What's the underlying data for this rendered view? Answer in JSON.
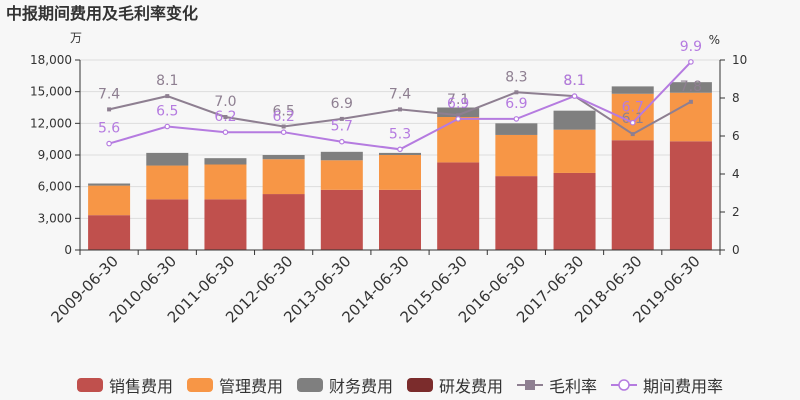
{
  "title": "中报期间费用及毛利率变化",
  "colors": {
    "sales": "#c0504d",
    "admin": "#f79646",
    "finance": "#7f7f7f",
    "rnd": "#7b2c2c",
    "gross": "#8e7f91",
    "period": "#b57be0"
  },
  "chart_data": {
    "type": "bar",
    "stacked": true,
    "categories": [
      "2009-06-30",
      "2010-06-30",
      "2011-06-30",
      "2012-06-30",
      "2013-06-30",
      "2014-06-30",
      "2015-06-30",
      "2016-06-30",
      "2017-06-30",
      "2018-06-30",
      "2019-06-30"
    ],
    "series": [
      {
        "name": "销售费用",
        "values": [
          3300,
          4800,
          4800,
          5300,
          5700,
          5700,
          8300,
          7000,
          7300,
          10400,
          10300
        ]
      },
      {
        "name": "管理费用",
        "values": [
          2800,
          3200,
          3300,
          3300,
          2800,
          3300,
          4300,
          3900,
          4100,
          4400,
          4600
        ]
      },
      {
        "name": "财务费用",
        "values": [
          200,
          1200,
          600,
          400,
          800,
          200,
          900,
          1100,
          1800,
          700,
          1000
        ]
      },
      {
        "name": "研发费用",
        "values": [
          0,
          0,
          0,
          0,
          0,
          0,
          0,
          0,
          0,
          0,
          0
        ]
      }
    ],
    "lines": [
      {
        "name": "毛利率",
        "values": [
          7.4,
          8.1,
          7.0,
          6.5,
          6.9,
          7.4,
          7.1,
          8.3,
          8.1,
          6.1,
          7.8
        ]
      },
      {
        "name": "期间费用率",
        "values": [
          5.6,
          6.5,
          6.2,
          6.2,
          5.7,
          5.3,
          6.9,
          6.9,
          8.1,
          6.7,
          9.9
        ]
      }
    ],
    "line_labels": {
      "毛利率": [
        "7.4",
        "8.1",
        "7.0",
        "6.5",
        "6.9",
        "7.4",
        "7.1",
        "8.3",
        "8.1",
        "6.1",
        "7.8"
      ],
      "期间费用率": [
        "5.6",
        "6.5",
        "6.2",
        "6.2",
        "5.7",
        "5.3",
        "6.9",
        "6.9",
        "8.1",
        "6.7",
        "9.9"
      ]
    },
    "y_left": {
      "label": "万",
      "ylim": [
        0,
        18000
      ],
      "ticks": [
        "0",
        "3,000",
        "6,000",
        "9,000",
        "12,000",
        "15,000",
        "18,000"
      ],
      "tick_values": [
        0,
        3000,
        6000,
        9000,
        12000,
        15000,
        18000
      ]
    },
    "y_right": {
      "label": "%",
      "ylim": [
        0,
        10
      ],
      "ticks": [
        "0",
        "2",
        "4",
        "6",
        "8",
        "10"
      ],
      "tick_values": [
        0,
        2,
        4,
        6,
        8,
        10
      ]
    },
    "legend_position": "bottom"
  },
  "legend": [
    {
      "label": "销售费用",
      "kind": "bar",
      "color_key": "sales"
    },
    {
      "label": "管理费用",
      "kind": "bar",
      "color_key": "admin"
    },
    {
      "label": "财务费用",
      "kind": "bar",
      "color_key": "finance"
    },
    {
      "label": "研发费用",
      "kind": "bar",
      "color_key": "rnd"
    },
    {
      "label": "毛利率",
      "kind": "line-square",
      "color_key": "gross"
    },
    {
      "label": "期间费用率",
      "kind": "line-circle",
      "color_key": "period"
    }
  ]
}
